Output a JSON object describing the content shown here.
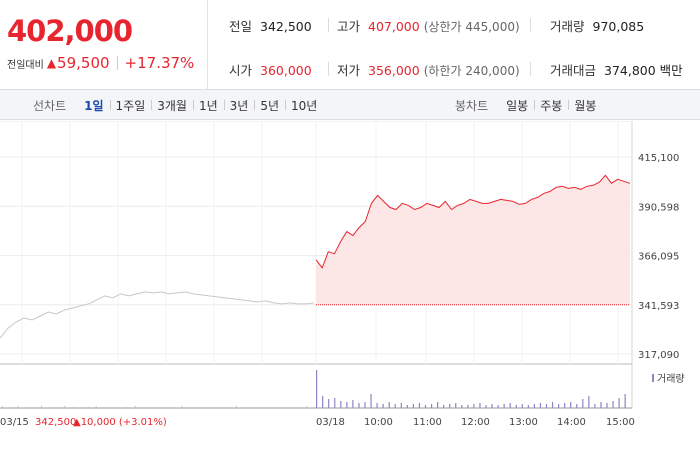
{
  "summary": {
    "current_price": "402,000",
    "change_label": "전일대비",
    "change_arrow": "▲",
    "change_value": "59,500",
    "change_pct": "+17.37%",
    "prev_close_label": "전일",
    "prev_close": "342,500",
    "high_label": "고가",
    "high": "407,000",
    "upper_limit": "(상한가 445,000)",
    "volume_label": "거래량",
    "volume": "970,085",
    "open_label": "시가",
    "open": "360,000",
    "low_label": "저가",
    "low": "356,000",
    "lower_limit": "(하한가 240,000)",
    "amount_label": "거래대금",
    "amount": "374,800 백만"
  },
  "toolbar": {
    "line_title": "선차트",
    "line_items": [
      "1일",
      "1주일",
      "3개월",
      "1년",
      "3년",
      "5년",
      "10년"
    ],
    "active_line": "1일",
    "candle_title": "봉차트",
    "candle_items": [
      "일봉",
      "주봉",
      "월봉"
    ]
  },
  "colors": {
    "up": "#e8252f",
    "prev_day_line": "#c8c8c8",
    "fill": "#fde6e6",
    "volume": "#8e86c4"
  },
  "chart_data": {
    "type": "line",
    "y_ticks": [
      "415,100",
      "390,598",
      "366,095",
      "341,593",
      "317,090"
    ],
    "ylim": [
      317090,
      415100
    ],
    "reference_value": 341593,
    "prev_day_label": "03/15",
    "prev_day_summary": "342,500",
    "prev_day_change": "▲10,000 (+3.01%)",
    "today_label": "03/18",
    "x_ticks": [
      "10:00",
      "11:00",
      "12:00",
      "13:00",
      "14:00",
      "15:00"
    ],
    "volume_legend": "거래량",
    "series": [
      {
        "values": [
          325000,
          330000,
          333000,
          335000,
          334000,
          336000,
          338000,
          337000,
          339000,
          340000,
          341000,
          342000,
          344000,
          346000,
          345000,
          347000,
          346000,
          347000,
          348000,
          347500,
          348000,
          347000,
          347500,
          348000,
          347000,
          346500,
          346000,
          345500,
          345000,
          344500,
          344000,
          343500,
          343000,
          343500,
          342500,
          342000,
          342500,
          342000,
          342000,
          342500
        ]
      },
      {
        "values": [
          364000,
          360000,
          368000,
          367000,
          373000,
          378000,
          376000,
          380000,
          383000,
          392000,
          396000,
          393000,
          390000,
          389000,
          392000,
          391000,
          389000,
          390000,
          392000,
          391000,
          390000,
          393000,
          389000,
          391000,
          392000,
          394000,
          393000,
          392000,
          392000,
          393000,
          394000,
          393500,
          393000,
          391500,
          392000,
          394000,
          395000,
          397000,
          398000,
          400000,
          400500,
          399500,
          400000,
          399000,
          400500,
          401000,
          402500,
          406000,
          402000,
          404000,
          403000,
          402000
        ]
      }
    ]
  }
}
